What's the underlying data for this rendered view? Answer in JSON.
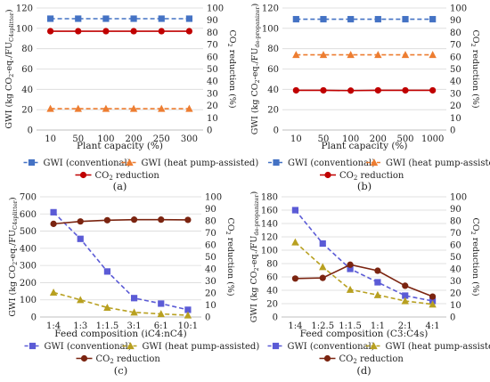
{
  "chart_data": [
    {
      "type": "line",
      "label": "(a)",
      "x_label_main": "Plant capacity (%)",
      "categories": [
        "10",
        "50",
        "100",
        "200",
        "250",
        "300"
      ],
      "y_left": {
        "label_pre": "GWI (kg CO",
        "label_sub1": "2",
        "label_mid": "-eq./FU",
        "label_sub2": "C4splitter",
        "label_post": ")",
        "ylim": [
          0,
          120
        ],
        "ticks": [
          "0",
          "20",
          "40",
          "60",
          "80",
          "100",
          "120"
        ]
      },
      "y_right": {
        "label_pre": "CO",
        "label_sub": "2",
        "label_post": " reduction (%)",
        "ylim": [
          0,
          100
        ],
        "ticks": [
          "0",
          "10",
          "20",
          "30",
          "40",
          "50",
          "60",
          "70",
          "80",
          "90",
          "100"
        ]
      },
      "series": [
        {
          "name": "GWI (conventional)",
          "axis": "left",
          "marker": "square",
          "dashed": true,
          "color": "#4472c4",
          "values": [
            109.5,
            109.5,
            109.5,
            109.5,
            109.5,
            109.5
          ]
        },
        {
          "name": "GWI (heat pump-assisted)",
          "axis": "left",
          "marker": "triangle",
          "dashed": true,
          "color": "#ed7d31",
          "values": [
            21,
            21,
            21,
            21,
            21,
            21
          ]
        },
        {
          "name_pre": "CO",
          "name_sub": "2",
          "name_post": " reduction",
          "axis": "right",
          "marker": "circle",
          "dashed": false,
          "color": "#c00000",
          "values": [
            81,
            81,
            81,
            81,
            81,
            81
          ]
        }
      ],
      "legend": "bottom"
    },
    {
      "type": "line",
      "label": "(b)",
      "x_label_main": "Plant capacity (%)",
      "categories": [
        "10",
        "50",
        "100",
        "200",
        "500",
        "1000"
      ],
      "y_left": {
        "label_pre": "GWI (kg CO",
        "label_sub1": "2",
        "label_mid": "-eq./FU",
        "label_sub2": "de-propanizer",
        "label_post": ")",
        "ylim": [
          0,
          120
        ],
        "ticks": [
          "0",
          "20",
          "40",
          "60",
          "80",
          "100",
          "120"
        ]
      },
      "y_right": {
        "label_pre": "CO",
        "label_sub": "2",
        "label_post": " reduction (%)",
        "ylim": [
          0,
          100
        ],
        "ticks": [
          "0",
          "10",
          "20",
          "30",
          "40",
          "50",
          "60",
          "70",
          "80",
          "90",
          "100"
        ]
      },
      "series": [
        {
          "name": "GWI (conventional)",
          "axis": "left",
          "marker": "square",
          "dashed": true,
          "color": "#4472c4",
          "values": [
            109,
            109,
            109,
            109,
            109,
            109
          ]
        },
        {
          "name": "GWI (heat pump-assisted)",
          "axis": "left",
          "marker": "triangle",
          "dashed": true,
          "color": "#ed7d31",
          "values": [
            74,
            74,
            74,
            74,
            74,
            74
          ]
        },
        {
          "name_pre": "CO",
          "name_sub": "2",
          "name_post": " reduction",
          "axis": "right",
          "marker": "circle",
          "dashed": false,
          "color": "#c00000",
          "values": [
            32.5,
            32.5,
            32.3,
            32.5,
            32.5,
            32.5
          ]
        }
      ],
      "legend": "bottom"
    },
    {
      "type": "line",
      "label": "(c)",
      "x_label_main": "Feed composition (iC4:nC4)",
      "categories": [
        "1:4",
        "1:3",
        "1:1.5",
        "3:1",
        "6:1",
        "10:1"
      ],
      "y_left": {
        "label_pre": "GWI (kg CO",
        "label_sub1": "2",
        "label_mid": "-eq./FU",
        "label_sub2": "C4splitter",
        "label_post": ")",
        "ylim": [
          0,
          700
        ],
        "ticks": [
          "0",
          "100",
          "200",
          "300",
          "400",
          "500",
          "600",
          "700"
        ]
      },
      "y_right": {
        "label_pre": "CO",
        "label_sub": "2",
        "label_post": " reduction (%)",
        "ylim": [
          0,
          100
        ],
        "ticks": [
          "0",
          "10",
          "20",
          "30",
          "40",
          "50",
          "60",
          "70",
          "80",
          "90",
          "100"
        ]
      },
      "series": [
        {
          "name": "GWI (conventional)",
          "axis": "left",
          "marker": "square",
          "dashed": true,
          "color": "#5b5bd6",
          "values": [
            610,
            455,
            265,
            110,
            78,
            42
          ]
        },
        {
          "name": "GWI (heat pump-assisted)",
          "axis": "left",
          "marker": "triangle",
          "dashed": true,
          "color": "#b8a020",
          "values": [
            143,
            100,
            55,
            27,
            18,
            10
          ]
        },
        {
          "name_pre": "CO",
          "name_sub": "2",
          "name_post": " reduction",
          "axis": "right",
          "marker": "circle",
          "dashed": false,
          "color": "#7b2410",
          "values": [
            77.5,
            79.5,
            80.5,
            81,
            81,
            80.8
          ]
        }
      ],
      "legend": "bottom"
    },
    {
      "type": "line",
      "label": "(d)",
      "x_label_main": "Feed composition (C3:C4s)",
      "categories": [
        "1:4",
        "1:2.5",
        "1:1.5",
        "1:1",
        "2:1",
        "4:1"
      ],
      "y_left": {
        "label_pre": "GWI (kg CO",
        "label_sub1": "2",
        "label_mid": "-eq./FU",
        "label_sub2": "de-propanizer",
        "label_post": ")",
        "ylim": [
          0,
          180
        ],
        "ticks": [
          "0",
          "20",
          "40",
          "60",
          "80",
          "100",
          "120",
          "140",
          "160",
          "180"
        ]
      },
      "y_right": {
        "label_pre": "CO",
        "label_sub": "2",
        "label_post": " reduction (%)",
        "ylim": [
          0,
          100
        ],
        "ticks": [
          "0",
          "10",
          "20",
          "30",
          "40",
          "50",
          "60",
          "70",
          "80",
          "90",
          "100"
        ]
      },
      "series": [
        {
          "name": "GWI (conventional)",
          "axis": "left",
          "marker": "square",
          "dashed": true,
          "color": "#5b5bd6",
          "values": [
            160,
            110,
            72,
            52,
            32,
            24
          ]
        },
        {
          "name": "GWI (heat pump-assisted)",
          "axis": "left",
          "marker": "triangle",
          "dashed": true,
          "color": "#b8a020",
          "values": [
            112,
            75,
            41,
            33,
            24,
            19
          ]
        },
        {
          "name_pre": "CO",
          "name_sub": "2",
          "name_post": " reduction",
          "axis": "right",
          "marker": "circle",
          "dashed": false,
          "color": "#7b2410",
          "values": [
            32,
            32.5,
            43.5,
            38.5,
            26,
            17
          ]
        }
      ],
      "legend": "bottom"
    }
  ]
}
